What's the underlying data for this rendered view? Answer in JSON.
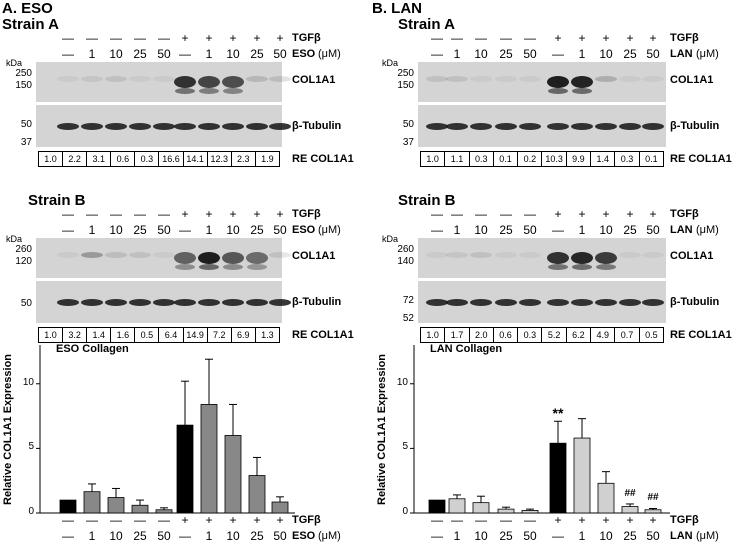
{
  "panels": [
    {
      "id": "A",
      "title": "A. ESO",
      "drug": "ESO",
      "unit": "(μM)",
      "strainA": {
        "title": "Strain A",
        "tgf": [
          "—",
          "—",
          "—",
          "—",
          "—",
          "+",
          "+",
          "+",
          "+",
          "+"
        ],
        "dose": [
          "—",
          "1",
          "10",
          "25",
          "50",
          "—",
          "1",
          "10",
          "25",
          "50"
        ],
        "target_label": "COL1A1",
        "control_label": "β-Tubulin",
        "kda": "kDa",
        "mw_target": [
          "250",
          "150"
        ],
        "mw_control": [
          "50",
          "37"
        ],
        "re": [
          "1.0",
          "2.2",
          "3.1",
          "0.6",
          "0.3",
          "16.6",
          "14.1",
          "12.3",
          "2.3",
          "1.9"
        ],
        "re_label": "RE COL1A1",
        "row_label_tgf": "TGFβ",
        "col1a1_intensity": [
          0.05,
          0.08,
          0.1,
          0.04,
          0.03,
          0.85,
          0.75,
          0.7,
          0.15,
          0.12
        ]
      },
      "strainB": {
        "title": "Strain B",
        "tgf": [
          "—",
          "—",
          "—",
          "—",
          "—",
          "+",
          "+",
          "+",
          "+",
          "+"
        ],
        "dose": [
          "—",
          "1",
          "10",
          "25",
          "50",
          "—",
          "1",
          "10",
          "25",
          "50"
        ],
        "target_label": "COL1A1",
        "control_label": "β-Tubulin",
        "kda": "kDa",
        "mw_target": [
          "260",
          "120"
        ],
        "mw_control": [
          "50"
        ],
        "re": [
          "1.0",
          "3.2",
          "1.4",
          "1.6",
          "0.5",
          "6.4",
          "14.9",
          "7.2",
          "6.9",
          "1.3"
        ],
        "re_label": "RE COL1A1",
        "row_label_tgf": "TGFβ",
        "col1a1_intensity": [
          0.05,
          0.3,
          0.12,
          0.1,
          0.05,
          0.6,
          0.95,
          0.65,
          0.55,
          0.1
        ]
      },
      "graph": {
        "title": "ESO Collagen",
        "ylabel": "Relative COL1A1 Expression",
        "yticks": [
          "0",
          "5",
          "10"
        ],
        "ymax": 13,
        "values": [
          1.0,
          1.65,
          1.2,
          0.6,
          0.25,
          6.8,
          8.4,
          6.0,
          2.9,
          0.85
        ],
        "errors": [
          0,
          0.6,
          0.7,
          0.4,
          0.15,
          3.4,
          3.5,
          2.4,
          1.4,
          0.4
        ],
        "colors": [
          "#000000",
          "#888888",
          "#888888",
          "#888888",
          "#888888",
          "#000000",
          "#888888",
          "#888888",
          "#888888",
          "#888888"
        ],
        "annotations": [
          "",
          "",
          "",
          "",
          "",
          "",
          "",
          "",
          "",
          ""
        ],
        "tgf": [
          "—",
          "—",
          "—",
          "—",
          "—",
          "+",
          "+",
          "+",
          "+",
          "+"
        ],
        "dose": [
          "—",
          "1",
          "10",
          "25",
          "50",
          "—",
          "1",
          "10",
          "25",
          "50"
        ],
        "row_label_tgf": "TGFβ"
      }
    },
    {
      "id": "B",
      "title": "B. LAN",
      "drug": "LAN",
      "unit": "(μM)",
      "strainA": {
        "title": "Strain A",
        "tgf": [
          "—",
          "—",
          "—",
          "—",
          "—",
          "+",
          "+",
          "+",
          "+",
          "+"
        ],
        "dose": [
          "—",
          "1",
          "10",
          "25",
          "50",
          "—",
          "1",
          "10",
          "25",
          "50"
        ],
        "target_label": "COL1A1",
        "control_label": "β-Tubulin",
        "kda": "kDa",
        "mw_target": [
          "250",
          "150"
        ],
        "mw_control": [
          "50",
          "37"
        ],
        "re": [
          "1.0",
          "1.1",
          "0.3",
          "0.1",
          "0.2",
          "10.3",
          "9.9",
          "1.4",
          "0.3",
          "0.1"
        ],
        "re_label": "RE COL1A1",
        "row_label_tgf": "TGFβ",
        "col1a1_intensity": [
          0.1,
          0.1,
          0.04,
          0.02,
          0.02,
          0.95,
          0.92,
          0.2,
          0.04,
          0.02
        ]
      },
      "strainB": {
        "title": "Strain B",
        "tgf": [
          "—",
          "—",
          "—",
          "—",
          "—",
          "+",
          "+",
          "+",
          "+",
          "+"
        ],
        "dose": [
          "—",
          "1",
          "10",
          "25",
          "50",
          "—",
          "1",
          "10",
          "25",
          "50"
        ],
        "target_label": "COL1A1",
        "control_label": "β-Tubulin",
        "kda": "kDa",
        "mw_target": [
          "260",
          "140"
        ],
        "mw_control": [
          "72",
          "52"
        ],
        "re": [
          "1.0",
          "1.7",
          "2.0",
          "0.6",
          "0.3",
          "5.2",
          "6.2",
          "4.9",
          "0.7",
          "0.5"
        ],
        "re_label": "RE COL1A1",
        "row_label_tgf": "TGFβ",
        "col1a1_intensity": [
          0.02,
          0.08,
          0.1,
          0.02,
          0.02,
          0.85,
          0.9,
          0.8,
          0.03,
          0.02
        ]
      },
      "graph": {
        "title": "LAN Collagen",
        "ylabel": "Relative COL1A1 Expression",
        "yticks": [
          "0",
          "5",
          "10"
        ],
        "ymax": 13,
        "values": [
          1.0,
          1.1,
          0.8,
          0.3,
          0.2,
          5.4,
          5.8,
          2.3,
          0.5,
          0.25
        ],
        "errors": [
          0,
          0.3,
          0.5,
          0.15,
          0.1,
          1.7,
          1.5,
          0.9,
          0.2,
          0.1
        ],
        "colors": [
          "#000000",
          "#d0d0d0",
          "#d0d0d0",
          "#d0d0d0",
          "#d0d0d0",
          "#000000",
          "#d0d0d0",
          "#d0d0d0",
          "#d0d0d0",
          "#d0d0d0"
        ],
        "annotations": [
          "",
          "",
          "",
          "",
          "",
          "**",
          "",
          "",
          "##",
          "##"
        ],
        "tgf": [
          "—",
          "—",
          "—",
          "—",
          "—",
          "+",
          "+",
          "+",
          "+",
          "+"
        ],
        "dose": [
          "—",
          "1",
          "10",
          "25",
          "50",
          "—",
          "1",
          "10",
          "25",
          "50"
        ],
        "row_label_tgf": "TGFβ"
      }
    }
  ]
}
